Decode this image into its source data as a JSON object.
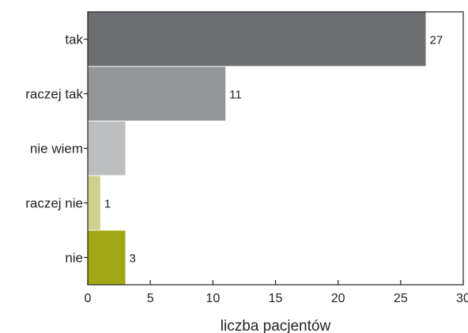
{
  "chart_data": {
    "type": "bar",
    "orientation": "horizontal",
    "categories": [
      "tak",
      "raczej tak",
      "nie wiem",
      "raczej nie",
      "nie"
    ],
    "values": [
      27,
      11,
      3,
      1,
      3
    ],
    "data_labels": [
      "27",
      "11",
      "",
      "1",
      "3"
    ],
    "colors": [
      "#6d6e71",
      "#939598",
      "#bcbec0",
      "#cdd18c",
      "#a2a716"
    ],
    "title": "",
    "xlabel": "liczba pacjentów",
    "ylabel": "",
    "xlim": [
      0,
      30
    ],
    "xticks": [
      0,
      5,
      10,
      15,
      20,
      25,
      30
    ],
    "grid": false,
    "legend": "none"
  }
}
